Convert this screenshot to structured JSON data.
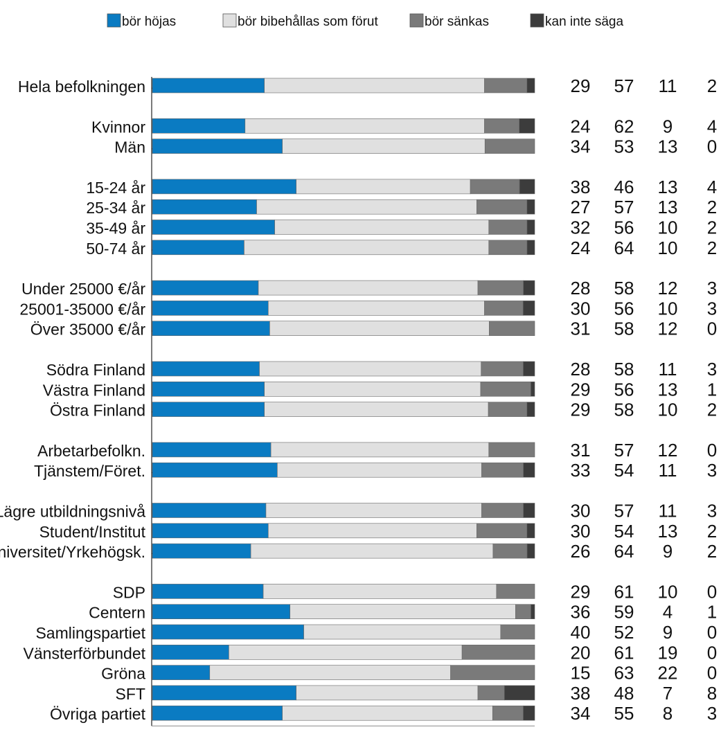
{
  "chart_data": {
    "type": "bar",
    "stacked": true,
    "orientation": "horizontal",
    "legend_position": "top",
    "series": [
      {
        "name": "bör höjas",
        "color": "#0a7bc2"
      },
      {
        "name": "bör bibehållas som förut",
        "color": "#e0e0e0"
      },
      {
        "name": "bör sänkas",
        "color": "#7a7a7a"
      },
      {
        "name": "kan inte säga",
        "color": "#3c3c3c"
      }
    ],
    "groups": [
      {
        "rows": [
          {
            "label": "Hela befolkningen",
            "values": [
              29,
              57,
              11,
              2
            ]
          }
        ]
      },
      {
        "rows": [
          {
            "label": "Kvinnor",
            "values": [
              24,
              62,
              9,
              4
            ]
          },
          {
            "label": "Män",
            "values": [
              34,
              53,
              13,
              0
            ]
          }
        ]
      },
      {
        "rows": [
          {
            "label": "15-24 år",
            "values": [
              38,
              46,
              13,
              4
            ]
          },
          {
            "label": "25-34 år",
            "values": [
              27,
              57,
              13,
              2
            ]
          },
          {
            "label": "35-49 år",
            "values": [
              32,
              56,
              10,
              2
            ]
          },
          {
            "label": "50-74 år",
            "values": [
              24,
              64,
              10,
              2
            ]
          }
        ]
      },
      {
        "rows": [
          {
            "label": "Under 25000 €/år",
            "values": [
              28,
              58,
              12,
              3
            ]
          },
          {
            "label": "25001-35000 €/år",
            "values": [
              30,
              56,
              10,
              3
            ]
          },
          {
            "label": "Över 35000 €/år",
            "values": [
              31,
              58,
              12,
              0
            ]
          }
        ]
      },
      {
        "rows": [
          {
            "label": "Södra Finland",
            "values": [
              28,
              58,
              11,
              3
            ]
          },
          {
            "label": "Västra Finland",
            "values": [
              29,
              56,
              13,
              1
            ]
          },
          {
            "label": "Östra Finland",
            "values": [
              29,
              58,
              10,
              2
            ]
          }
        ]
      },
      {
        "rows": [
          {
            "label": "Arbetarbefolkn.",
            "values": [
              31,
              57,
              12,
              0
            ]
          },
          {
            "label": "Tjänstem/Föret.",
            "values": [
              33,
              54,
              11,
              3
            ]
          }
        ]
      },
      {
        "rows": [
          {
            "label": "Lägre utbildningsnivå",
            "values": [
              30,
              57,
              11,
              3
            ]
          },
          {
            "label": "Student/Institut",
            "values": [
              30,
              54,
              13,
              2
            ]
          },
          {
            "label": "Universitet/Yrkehögsk.",
            "values": [
              26,
              64,
              9,
              2
            ]
          }
        ]
      },
      {
        "rows": [
          {
            "label": "SDP",
            "values": [
              29,
              61,
              10,
              0
            ]
          },
          {
            "label": "Centern",
            "values": [
              36,
              59,
              4,
              1
            ]
          },
          {
            "label": "Samlingspartiet",
            "values": [
              40,
              52,
              9,
              0
            ]
          },
          {
            "label": "Vänsterförbundet",
            "values": [
              20,
              61,
              19,
              0
            ]
          },
          {
            "label": "Gröna",
            "values": [
              15,
              63,
              22,
              0
            ]
          },
          {
            "label": "SFT",
            "values": [
              38,
              48,
              7,
              8
            ]
          },
          {
            "label": "Övriga partiet",
            "values": [
              34,
              55,
              8,
              3
            ]
          }
        ]
      }
    ]
  }
}
